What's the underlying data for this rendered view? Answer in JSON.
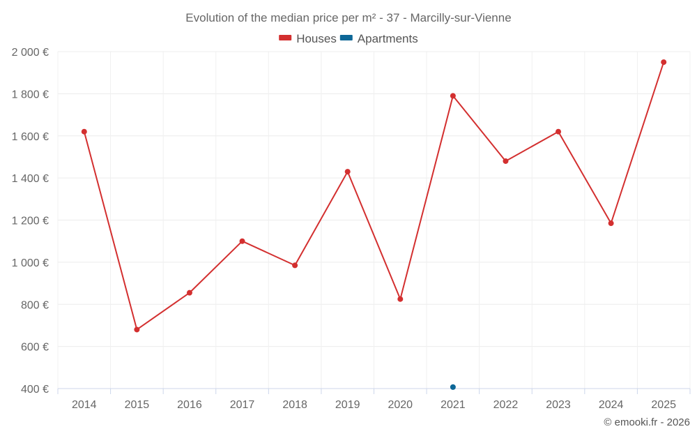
{
  "chart_data": {
    "type": "line",
    "title": "Evolution of the median price per m² - 37 - Marcilly-sur-Vienne",
    "categories": [
      "2014",
      "2015",
      "2016",
      "2017",
      "2018",
      "2019",
      "2020",
      "2021",
      "2022",
      "2023",
      "2024",
      "2025"
    ],
    "series": [
      {
        "name": "Houses",
        "color": "#d32f2f",
        "values": [
          1620,
          680,
          855,
          1100,
          985,
          1430,
          825,
          1790,
          1480,
          1620,
          1185,
          1950
        ]
      },
      {
        "name": "Apartments",
        "color": "#0d6797",
        "values": [
          null,
          null,
          null,
          null,
          null,
          null,
          null,
          407,
          null,
          null,
          null,
          null
        ]
      }
    ],
    "ylim": [
      400,
      2000
    ],
    "yticks": [
      400,
      600,
      800,
      1000,
      1200,
      1400,
      1600,
      1800,
      2000
    ],
    "ytick_labels": [
      "400 €",
      "600 €",
      "800 €",
      "1 000 €",
      "1 200 €",
      "1 400 €",
      "1 600 €",
      "1 800 €",
      "2 000 €"
    ],
    "xlabel": "",
    "ylabel": "",
    "grid": true,
    "legend_position": "top-center"
  },
  "credit": "© emooki.fr - 2026"
}
